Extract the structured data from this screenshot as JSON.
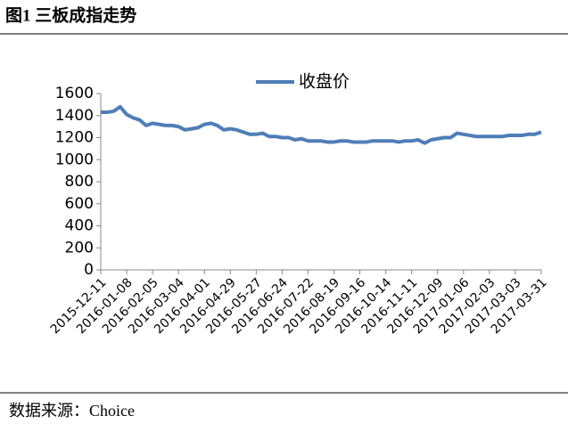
{
  "header": {
    "title": "图1  三板成指走势"
  },
  "chart_data": {
    "type": "line",
    "legend": "top",
    "categories": [
      "2015-12-11",
      null,
      null,
      null,
      "2016-01-08",
      null,
      null,
      null,
      "2016-02-05",
      null,
      null,
      null,
      "2016-03-04",
      null,
      null,
      null,
      "2016-04-01",
      null,
      null,
      null,
      "2016-04-29",
      null,
      null,
      null,
      "2016-05-27",
      null,
      null,
      null,
      "2016-06-24",
      null,
      null,
      null,
      "2016-07-22",
      null,
      null,
      null,
      "2016-08-19",
      null,
      null,
      null,
      "2016-09-16",
      null,
      null,
      null,
      "2016-10-14",
      null,
      null,
      null,
      "2016-11-11",
      null,
      null,
      null,
      "2016-12-09",
      null,
      null,
      null,
      "2017-01-06",
      null,
      null,
      null,
      "2017-02-03",
      null,
      null,
      null,
      "2017-03-03",
      null,
      null,
      null,
      "2017-03-31"
    ],
    "series": [
      {
        "name": "收盘价",
        "color": "#4f7db8",
        "values": [
          1430,
          1430,
          1440,
          1480,
          1410,
          1380,
          1360,
          1310,
          1330,
          1320,
          1310,
          1310,
          1300,
          1270,
          1280,
          1290,
          1320,
          1330,
          1310,
          1270,
          1280,
          1270,
          1250,
          1230,
          1230,
          1240,
          1210,
          1210,
          1200,
          1200,
          1180,
          1190,
          1170,
          1170,
          1170,
          1160,
          1160,
          1170,
          1170,
          1160,
          1160,
          1160,
          1170,
          1170,
          1170,
          1170,
          1160,
          1170,
          1170,
          1180,
          1150,
          1180,
          1190,
          1200,
          1200,
          1240,
          1230,
          1220,
          1210,
          1210,
          1210,
          1210,
          1210,
          1220,
          1220,
          1220,
          1230,
          1230,
          1250
        ]
      }
    ],
    "ylim": [
      0,
      1600
    ],
    "yticks": [
      0,
      200,
      400,
      600,
      800,
      1000,
      1200,
      1400,
      1600
    ],
    "grid": false
  },
  "footer": {
    "source": "数据来源：Choice"
  }
}
